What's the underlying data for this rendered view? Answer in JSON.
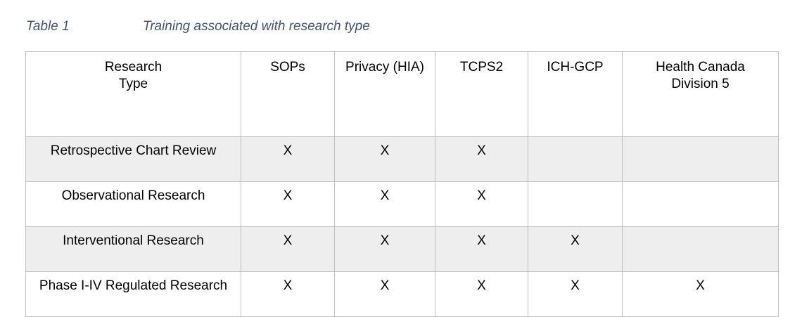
{
  "caption": {
    "number": "Table 1",
    "title": "Training associated with research type"
  },
  "table": {
    "headers": [
      "Research Type",
      "SOPs",
      "Privacy (HIA)",
      "TCPS2",
      "ICH-GCP",
      "Health Canada Division 5"
    ],
    "rows": [
      {
        "type": "Retrospective Chart Review",
        "cells": [
          "X",
          "X",
          "X",
          "",
          ""
        ]
      },
      {
        "type": "Observational Research",
        "cells": [
          "X",
          "X",
          "X",
          "",
          ""
        ]
      },
      {
        "type": "Interventional Research",
        "cells": [
          "X",
          "X",
          "X",
          "X",
          ""
        ]
      },
      {
        "type": "Phase I-IV Regulated Research",
        "cells": [
          "X",
          "X",
          "X",
          "X",
          "X"
        ]
      }
    ]
  }
}
